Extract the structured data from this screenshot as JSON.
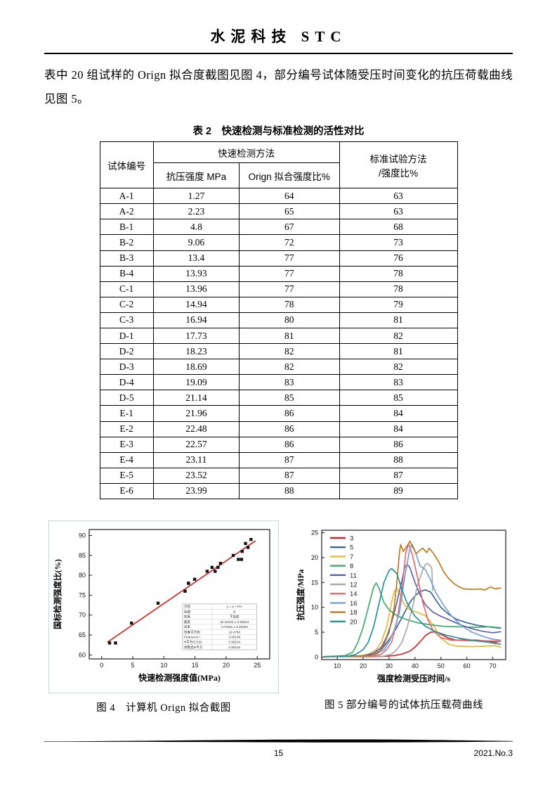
{
  "page": {
    "header_title": "水泥科技 STC",
    "paragraph": "表中 20 组试样的 Orign 拟合度截图见图 4，部分编号试体随受压时间变化的抗压荷载曲线见图 5。",
    "footer": {
      "page_number": "15",
      "issue": "2021.No.3"
    }
  },
  "table": {
    "title": "表 2　快速检测与标准检测的活性对比",
    "header": {
      "specimen_id": "试体编号",
      "rapid_group": "快速检测方法",
      "compressive_strength": "抗压强度 MPa",
      "orign_ratio": "Orign 拟合强度比%",
      "standard_line1": "标准试验方法",
      "standard_line2": "/强度比%"
    },
    "rows": [
      [
        "A-1",
        "1.27",
        "64",
        "63"
      ],
      [
        "A-2",
        "2.23",
        "65",
        "63"
      ],
      [
        "B-1",
        "4.8",
        "67",
        "68"
      ],
      [
        "B-2",
        "9.06",
        "72",
        "73"
      ],
      [
        "B-3",
        "13.4",
        "77",
        "76"
      ],
      [
        "B-4",
        "13.93",
        "77",
        "78"
      ],
      [
        "C-1",
        "13.96",
        "77",
        "78"
      ],
      [
        "C-2",
        "14.94",
        "78",
        "79"
      ],
      [
        "C-3",
        "16.94",
        "80",
        "81"
      ],
      [
        "D-1",
        "17.73",
        "81",
        "82"
      ],
      [
        "D-2",
        "18.23",
        "82",
        "81"
      ],
      [
        "D-3",
        "18.69",
        "82",
        "82"
      ],
      [
        "D-4",
        "19.09",
        "83",
        "83"
      ],
      [
        "D-5",
        "21.14",
        "85",
        "85"
      ],
      [
        "E-1",
        "21.96",
        "86",
        "84"
      ],
      [
        "E-2",
        "22.48",
        "86",
        "84"
      ],
      [
        "E-3",
        "22.57",
        "86",
        "86"
      ],
      [
        "E-4",
        "23.11",
        "87",
        "88"
      ],
      [
        "E-5",
        "23.52",
        "87",
        "87"
      ],
      [
        "E-6",
        "23.99",
        "88",
        "89"
      ]
    ]
  },
  "figures": {
    "fig4_caption": "图 4　计算机 Orign 拟合截图",
    "fig5_caption": "图 5  部分编号的试体抗压载荷曲线"
  },
  "chart_data": [
    {
      "id": "fig4",
      "type": "scatter",
      "title": "",
      "xlabel": "快速检测强度值(MPa)",
      "ylabel": "国标检测强度比(%)",
      "xlim": [
        -2,
        27
      ],
      "ylim": [
        59,
        91.5
      ],
      "xticks": [
        0,
        5,
        10,
        15,
        20,
        25
      ],
      "yticks": [
        60,
        65,
        70,
        75,
        80,
        85,
        90
      ],
      "grid": false,
      "marker": "square",
      "marker_color": "#151515",
      "points": [
        [
          1.27,
          63
        ],
        [
          2.23,
          63
        ],
        [
          4.8,
          68
        ],
        [
          9.06,
          73
        ],
        [
          13.4,
          76
        ],
        [
          13.93,
          78
        ],
        [
          13.96,
          78
        ],
        [
          14.94,
          79
        ],
        [
          16.94,
          81
        ],
        [
          17.73,
          82
        ],
        [
          18.23,
          81
        ],
        [
          18.69,
          82
        ],
        [
          19.09,
          83
        ],
        [
          21.14,
          85
        ],
        [
          21.96,
          84
        ],
        [
          22.48,
          84
        ],
        [
          22.57,
          86
        ],
        [
          23.11,
          88
        ],
        [
          23.52,
          87
        ],
        [
          23.99,
          89
        ]
      ],
      "fit_line": {
        "intercept": 62.20432,
        "slope": 1.07081,
        "x_range": [
          0.9,
          24.7
        ],
        "color": "#ce2a2a"
      },
      "stats_table": [
        [
          "方程",
          "y = a + b*x"
        ],
        [
          "绘图",
          "B"
        ],
        [
          "权重",
          "不加权"
        ],
        [
          "截距",
          "62.20432 ± 0.50543"
        ],
        [
          "斜率",
          "1.07081 ± 0.03393"
        ],
        [
          "残差平方和",
          "19.4786"
        ],
        [
          "Pearson's r",
          "0.99108"
        ],
        [
          "R平方(COD)",
          "0.98224"
        ],
        [
          "调整后R平方",
          "0.98126"
        ]
      ]
    },
    {
      "id": "fig5",
      "type": "line",
      "title": "",
      "xlabel": "强度检测受压时间/s",
      "ylabel": "抗压强度/MPa",
      "xlim": [
        4,
        75
      ],
      "ylim": [
        -0.5,
        25.5
      ],
      "xticks": [
        10,
        20,
        30,
        40,
        50,
        60,
        70
      ],
      "yticks": [
        0,
        5,
        10,
        15,
        20,
        25
      ],
      "grid": false,
      "legend_position": "top-left",
      "series": [
        {
          "name": "3",
          "color": "#c62828",
          "points": [
            [
              5,
              0.1
            ],
            [
              20,
              0.1
            ],
            [
              28,
              0.15
            ],
            [
              32,
              0.3
            ],
            [
              35,
              0.6
            ],
            [
              38,
              1.2
            ],
            [
              40,
              2
            ],
            [
              42,
              3.1
            ],
            [
              44,
              4.3
            ],
            [
              46,
              5
            ],
            [
              48,
              5.1
            ],
            [
              50,
              4.6
            ],
            [
              53,
              3.8
            ],
            [
              56,
              3.4
            ],
            [
              60,
              3.4
            ],
            [
              64,
              3.4
            ],
            [
              68,
              3.2
            ],
            [
              71,
              3.0
            ],
            [
              73,
              3.2
            ]
          ]
        },
        {
          "name": "5",
          "color": "#3a649e",
          "points": [
            [
              5,
              0.1
            ],
            [
              20,
              0.2
            ],
            [
              24,
              0.5
            ],
            [
              27,
              1.5
            ],
            [
              30,
              3.5
            ],
            [
              33,
              6
            ],
            [
              36,
              9
            ],
            [
              38,
              11
            ],
            [
              40,
              12.3
            ],
            [
              42,
              13.2
            ],
            [
              44,
              13.5
            ],
            [
              46,
              13.1
            ],
            [
              48,
              11.5
            ],
            [
              50,
              10
            ],
            [
              53,
              8.6
            ],
            [
              56,
              7.6
            ],
            [
              60,
              6.9
            ],
            [
              64,
              6.4
            ],
            [
              68,
              6.1
            ],
            [
              73,
              5.8
            ]
          ]
        },
        {
          "name": "7",
          "color": "#e6b93c",
          "points": [
            [
              5,
              0.1
            ],
            [
              18,
              0.2
            ],
            [
              22,
              0.6
            ],
            [
              25,
              1.5
            ],
            [
              27,
              3
            ],
            [
              29,
              6
            ],
            [
              31,
              11
            ],
            [
              32,
              13.2
            ],
            [
              33,
              13.8
            ],
            [
              34,
              12.8
            ],
            [
              36,
              10.5
            ],
            [
              38,
              9.5
            ],
            [
              41,
              9
            ],
            [
              44,
              8.3
            ],
            [
              47,
              6.5
            ],
            [
              50,
              3.8
            ],
            [
              53,
              2.6
            ],
            [
              56,
              2.2
            ],
            [
              62,
              2.1
            ],
            [
              67,
              2.2
            ],
            [
              71,
              2.3
            ],
            [
              73,
              2.0
            ]
          ]
        },
        {
          "name": "8",
          "color": "#43a968",
          "points": [
            [
              5,
              0.1
            ],
            [
              13,
              0.3
            ],
            [
              16,
              1
            ],
            [
              18,
              3
            ],
            [
              20,
              6
            ],
            [
              22,
              10
            ],
            [
              24,
              14
            ],
            [
              25,
              14.9
            ],
            [
              26,
              14
            ],
            [
              28,
              11
            ],
            [
              30,
              9.5
            ],
            [
              33,
              8.3
            ],
            [
              37,
              7.5
            ],
            [
              41,
              6.9
            ],
            [
              46,
              6.5
            ],
            [
              51,
              6.2
            ],
            [
              57,
              6.1
            ],
            [
              64,
              6.0
            ],
            [
              69,
              6.1
            ],
            [
              73,
              5.9
            ]
          ]
        },
        {
          "name": "11",
          "color": "#5f61a8",
          "points": [
            [
              5,
              0.1
            ],
            [
              20,
              0.2
            ],
            [
              24,
              0.8
            ],
            [
              27,
              2
            ],
            [
              29,
              4
            ],
            [
              31,
              7
            ],
            [
              33,
              11
            ],
            [
              35,
              15.5
            ],
            [
              36,
              18
            ],
            [
              37,
              18.6
            ],
            [
              38,
              18
            ],
            [
              40,
              15
            ],
            [
              42,
              12.5
            ],
            [
              44,
              10.5
            ],
            [
              47,
              9
            ],
            [
              50,
              8.2
            ],
            [
              54,
              7.3
            ],
            [
              58,
              6.4
            ],
            [
              62,
              5.7
            ],
            [
              66,
              5.2
            ],
            [
              70,
              4.9
            ],
            [
              73,
              5.1
            ]
          ]
        },
        {
          "name": "12",
          "color": "#a8a8a8",
          "points": [
            [
              5,
              0.1
            ],
            [
              28,
              0.2
            ],
            [
              31,
              0.6
            ],
            [
              33,
              1.5
            ],
            [
              35,
              3
            ],
            [
              37,
              6
            ],
            [
              39,
              10
            ],
            [
              41,
              14.5
            ],
            [
              43,
              17.5
            ],
            [
              44,
              18.6
            ],
            [
              45,
              18.8
            ],
            [
              46,
              18.3
            ],
            [
              46.5,
              17.8
            ],
            [
              46.8,
              13.4
            ]
          ]
        },
        {
          "name": "14",
          "color": "#e66a70",
          "points": [
            [
              5,
              0.1
            ],
            [
              24,
              0.2
            ],
            [
              27,
              0.6
            ],
            [
              29,
              1.5
            ],
            [
              31,
              3
            ],
            [
              33,
              7
            ],
            [
              35,
              14
            ],
            [
              36.5,
              21
            ],
            [
              37.5,
              22.8
            ],
            [
              39,
              20.5
            ],
            [
              41,
              16
            ],
            [
              43,
              11
            ],
            [
              45,
              7.5
            ],
            [
              47,
              5.3
            ],
            [
              50,
              3.9
            ],
            [
              54,
              3.4
            ],
            [
              60,
              3.3
            ],
            [
              66,
              3.3
            ],
            [
              73,
              3.2
            ]
          ]
        },
        {
          "name": "16",
          "color": "#74a2d8",
          "points": [
            [
              5,
              0.1
            ],
            [
              22,
              0.2
            ],
            [
              25,
              0.6
            ],
            [
              28,
              1.5
            ],
            [
              30,
              3
            ],
            [
              32,
              5.5
            ],
            [
              34,
              9
            ],
            [
              36,
              16
            ],
            [
              38,
              21.8
            ],
            [
              39,
              22.6
            ],
            [
              40,
              21.3
            ],
            [
              42,
              18.3
            ],
            [
              44,
              17.6
            ],
            [
              46,
              15.5
            ],
            [
              48,
              13
            ],
            [
              51,
              10.5
            ],
            [
              54,
              8.3
            ],
            [
              58,
              6.3
            ],
            [
              62,
              5
            ],
            [
              66,
              4.2
            ],
            [
              70,
              3.6
            ],
            [
              73,
              3.4
            ]
          ]
        },
        {
          "name": "18",
          "color": "#c07a1e",
          "points": [
            [
              5,
              0.1
            ],
            [
              23,
              0.3
            ],
            [
              26,
              1
            ],
            [
              28,
              2.5
            ],
            [
              30,
              5
            ],
            [
              32,
              10
            ],
            [
              33,
              15
            ],
            [
              34,
              21
            ],
            [
              34.5,
              22.6
            ],
            [
              35.5,
              21.2
            ],
            [
              37,
              22.4
            ],
            [
              38,
              23.3
            ],
            [
              39,
              22.2
            ],
            [
              40.5,
              20.8
            ],
            [
              42,
              21.5
            ],
            [
              43,
              21.9
            ],
            [
              44.5,
              21.0
            ],
            [
              45.5,
              21.9
            ],
            [
              47,
              20.9
            ],
            [
              49,
              19.3
            ],
            [
              51,
              17.2
            ],
            [
              53,
              15.8
            ],
            [
              55,
              14.8
            ],
            [
              57,
              14.1
            ],
            [
              59,
              13.7
            ],
            [
              62,
              13.6
            ],
            [
              65,
              13.7
            ],
            [
              67,
              13.5
            ],
            [
              69,
              14.1
            ],
            [
              71,
              13.7
            ],
            [
              73,
              13.9
            ]
          ]
        },
        {
          "name": "20",
          "color": "#20939a",
          "points": [
            [
              5,
              0.1
            ],
            [
              14,
              0.2
            ],
            [
              17,
              0.5
            ],
            [
              20,
              1.5
            ],
            [
              22,
              3
            ],
            [
              24,
              6
            ],
            [
              26,
              10.5
            ],
            [
              28,
              15
            ],
            [
              30,
              17.4
            ],
            [
              31,
              17.8
            ],
            [
              33,
              16.8
            ],
            [
              35,
              13.5
            ],
            [
              37,
              10.8
            ],
            [
              40,
              8.2
            ],
            [
              44,
              6.2
            ],
            [
              48,
              5.1
            ],
            [
              52,
              4.4
            ],
            [
              57,
              3.8
            ],
            [
              63,
              3.3
            ],
            [
              68,
              3.0
            ],
            [
              73,
              2.6
            ]
          ]
        }
      ]
    }
  ]
}
